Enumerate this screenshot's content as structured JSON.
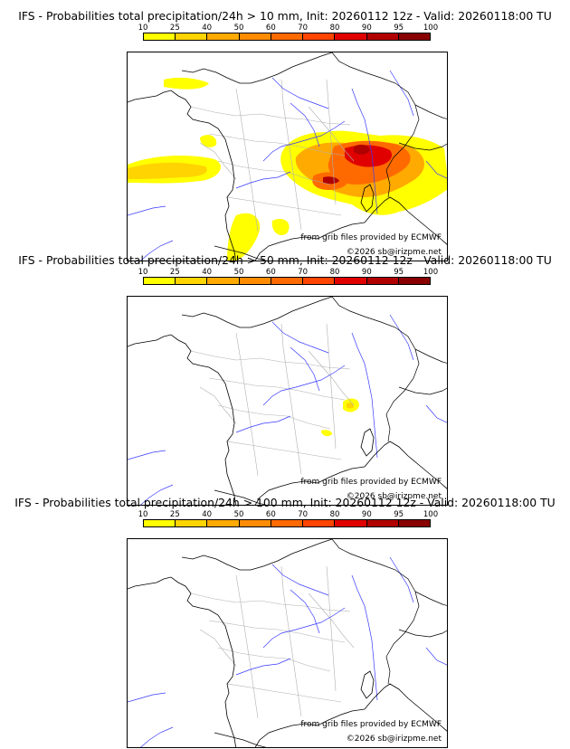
{
  "legend": {
    "ticks": [
      "10",
      "25",
      "40",
      "50",
      "60",
      "70",
      "80",
      "90",
      "95",
      "100"
    ],
    "colors": [
      "#ffff00",
      "#ffd400",
      "#ffaa00",
      "#ff8c00",
      "#ff6a00",
      "#ff4500",
      "#e00000",
      "#b00000",
      "#880000"
    ]
  },
  "credits": {
    "source": "from grib files provided by ECMWF",
    "copyright": "©2026 sb@irizpme.net"
  },
  "panels": [
    {
      "title": "IFS - Probabilities total precipitation/24h > 10 mm, Init: 20260112 12z - Valid: 20260118:00 TU",
      "overlay": "heavy"
    },
    {
      "title": "IFS - Probabilities total precipitation/24h > 50 mm, Init: 20260112 12z - Valid: 20260118:00 TU",
      "overlay": "light"
    },
    {
      "title": "IFS - Probabilities total precipitation/24h > 100 mm, Init: 20260112 12z - Valid: 20260118:00 TU",
      "overlay": "none"
    }
  ]
}
